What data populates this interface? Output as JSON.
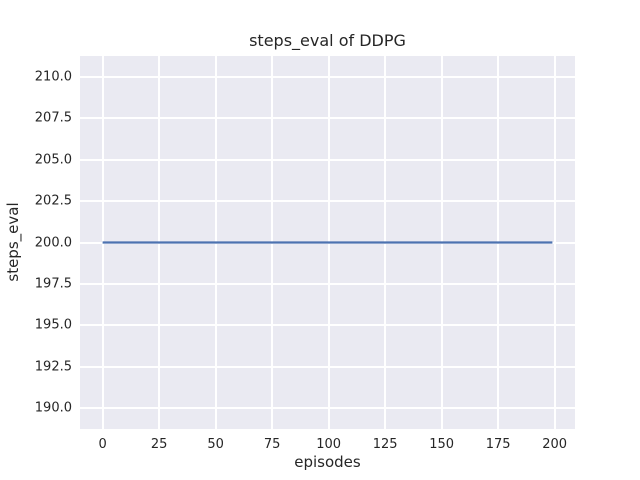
{
  "chart_data": {
    "type": "line",
    "title": "steps_eval of DDPG",
    "xlabel": "episodes",
    "ylabel": "steps_eval",
    "series": [
      {
        "name": "steps_eval",
        "color": "#4c72b0",
        "x": [
          0,
          199
        ],
        "y": [
          200,
          200
        ],
        "description": "constant value of 200 steps for every evaluation episode from 0 to 199"
      }
    ],
    "x_tick_labels": [
      "0",
      "25",
      "50",
      "75",
      "100",
      "125",
      "150",
      "175",
      "200"
    ],
    "x_tick_values": [
      0,
      25,
      50,
      75,
      100,
      125,
      150,
      175,
      200
    ],
    "y_tick_labels": [
      "190.0",
      "192.5",
      "195.0",
      "197.5",
      "200.0",
      "202.5",
      "205.0",
      "207.5",
      "210.0"
    ],
    "y_tick_values": [
      190,
      192.5,
      195,
      197.5,
      200,
      202.5,
      205,
      207.5,
      210
    ],
    "xlim": [
      -10,
      209
    ],
    "ylim": [
      188.75,
      211.25
    ],
    "grid": true,
    "legend": false,
    "colors": {
      "figure_background": "#ffffff",
      "plot_background": "#eaeaf2",
      "grid": "#ffffff",
      "text": "#262626"
    }
  }
}
